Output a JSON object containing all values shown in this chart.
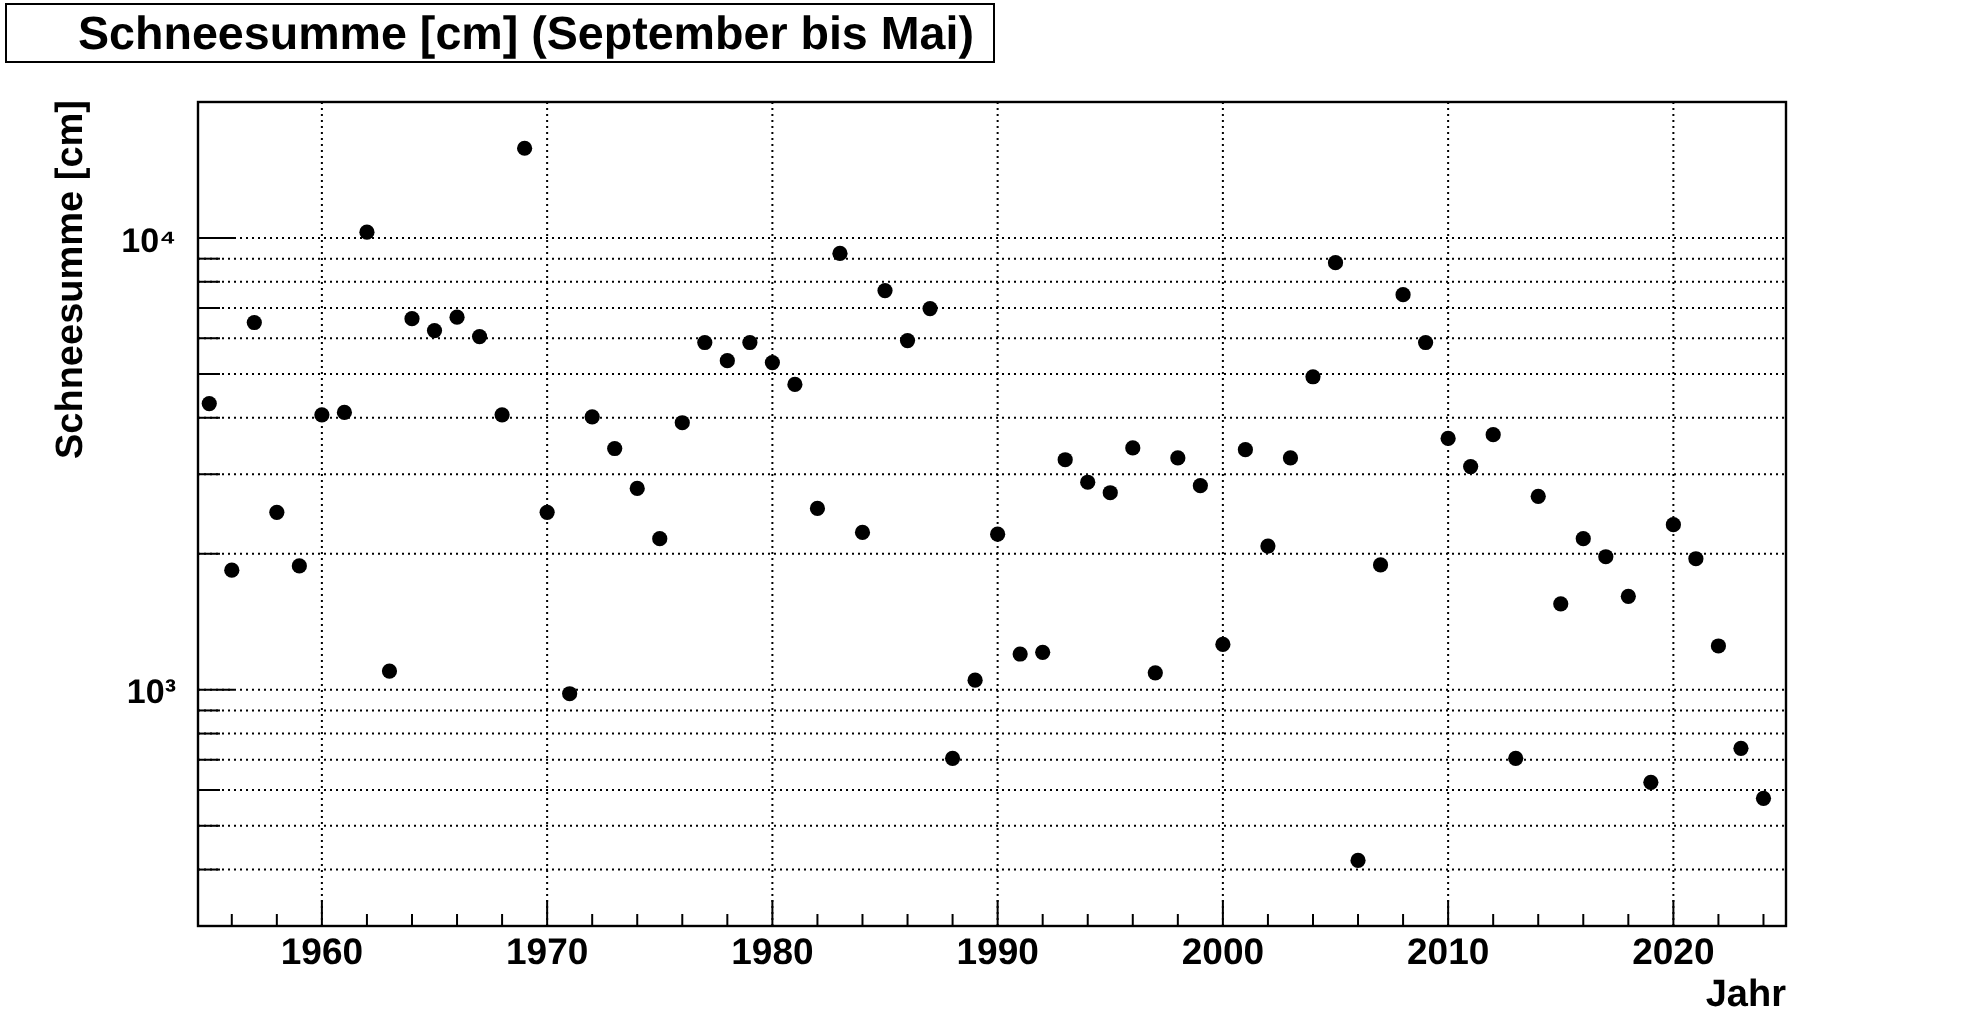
{
  "chart_data": {
    "type": "scatter",
    "title": "Schneesumme [cm] (September bis Mai)",
    "xlabel": "Jahr",
    "ylabel": "Schneesumme [cm]",
    "x": [
      1955,
      1956,
      1957,
      1958,
      1959,
      1960,
      1961,
      1962,
      1963,
      1964,
      1965,
      1966,
      1967,
      1968,
      1969,
      1970,
      1971,
      1972,
      1973,
      1974,
      1975,
      1976,
      1977,
      1978,
      1979,
      1980,
      1981,
      1982,
      1983,
      1984,
      1985,
      1986,
      1987,
      1988,
      1989,
      1990,
      1991,
      1992,
      1993,
      1994,
      1995,
      1996,
      1997,
      1998,
      1999,
      2000,
      2001,
      2002,
      2003,
      2004,
      2005,
      2006,
      2007,
      2008,
      2009,
      2010,
      2011,
      2012,
      2013,
      2014,
      2015,
      2016,
      2017,
      2018,
      2019,
      2020,
      2021,
      2022,
      2023,
      2024
    ],
    "values": [
      4300,
      1840,
      6500,
      2470,
      1880,
      4060,
      4110,
      10300,
      1100,
      6630,
      6240,
      6680,
      6050,
      4060,
      15800,
      2470,
      980,
      4020,
      3420,
      2790,
      2160,
      3900,
      5870,
      5350,
      5870,
      5300,
      4740,
      2520,
      9250,
      2230,
      7650,
      5930,
      6980,
      705,
      1050,
      2210,
      1200,
      1210,
      3230,
      2880,
      2730,
      3430,
      1090,
      3260,
      2830,
      1260,
      3400,
      2080,
      3260,
      4930,
      8820,
      419,
      1890,
      7490,
      5870,
      3600,
      3120,
      3670,
      705,
      2680,
      1550,
      2160,
      1970,
      1610,
      624,
      2320,
      1950,
      1250,
      742,
      575
    ],
    "color": "#000000",
    "marker": "circle",
    "log": true,
    "grid": true,
    "xlim": [
      1954.5,
      2025
    ],
    "ylim": [
      300,
      20000
    ],
    "xticks": [
      {
        "value": 1956,
        "label": null
      },
      {
        "value": 1958,
        "label": null
      },
      1960,
      {
        "value": 1962,
        "label": null
      },
      {
        "value": 1964,
        "label": null
      },
      {
        "value": 1966,
        "label": null
      },
      {
        "value": 1968,
        "label": null
      },
      1970,
      {
        "value": 1972,
        "label": null
      },
      {
        "value": 1974,
        "label": null
      },
      {
        "value": 1976,
        "label": null
      },
      {
        "value": 1978,
        "label": null
      },
      1980,
      {
        "value": 1982,
        "label": null
      },
      {
        "value": 1984,
        "label": null
      },
      {
        "value": 1986,
        "label": null
      },
      {
        "value": 1988,
        "label": null
      },
      1990,
      {
        "value": 1992,
        "label": null
      },
      {
        "value": 1994,
        "label": null
      },
      {
        "value": 1996,
        "label": null
      },
      {
        "value": 1998,
        "label": null
      },
      2000,
      {
        "value": 2002,
        "label": null
      },
      {
        "value": 2004,
        "label": null
      },
      {
        "value": 2006,
        "label": null
      },
      {
        "value": 2008,
        "label": null
      },
      2010,
      {
        "value": 2012,
        "label": null
      },
      {
        "value": 2014,
        "label": null
      },
      {
        "value": 2016,
        "label": null
      },
      {
        "value": 2018,
        "label": null
      },
      2020,
      {
        "value": 2022,
        "label": null
      },
      {
        "value": 2024,
        "label": null
      }
    ],
    "yticks": [
      {
        "value": 400,
        "label": null
      },
      {
        "value": 500,
        "label": null
      },
      {
        "value": 600,
        "label": null
      },
      {
        "value": 700,
        "label": null
      },
      {
        "value": 800,
        "label": null
      },
      {
        "value": 900,
        "label": null
      },
      {
        "value": 1000,
        "label": "10³"
      },
      {
        "value": 2000,
        "label": null
      },
      {
        "value": 3000,
        "label": null
      },
      {
        "value": 4000,
        "label": null
      },
      {
        "value": 5000,
        "label": null
      },
      {
        "value": 6000,
        "label": null
      },
      {
        "value": 7000,
        "label": null
      },
      {
        "value": 8000,
        "label": null
      },
      {
        "value": 9000,
        "label": null
      },
      {
        "value": 10000,
        "label": "10⁴"
      }
    ]
  }
}
